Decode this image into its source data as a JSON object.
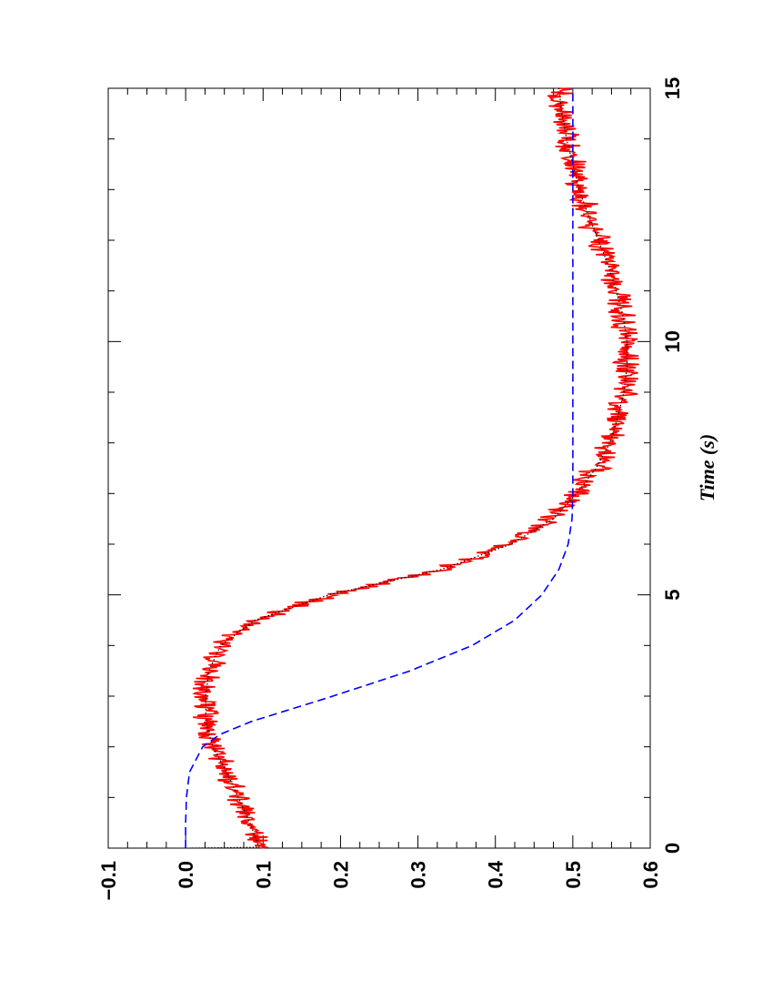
{
  "chart_data": {
    "type": "line",
    "orientation": "rotated 90 degrees clockwise (time axis on the right edge, value axis along the bottom)",
    "xlabel": "Time (s)",
    "ylabel": "",
    "xlim": [
      0,
      15
    ],
    "ylim": [
      -0.1,
      0.6
    ],
    "x_ticks": [
      "0",
      "5",
      "10",
      "15"
    ],
    "y_ticks": [
      "−0.1",
      "0.0",
      "0.1",
      "0.2",
      "0.3",
      "0.4",
      "0.5",
      "0.6"
    ],
    "grid": false,
    "legend": "none",
    "series": [
      {
        "style": "noisy-solid",
        "color": "#ff0000",
        "x": [
          0,
          0.5,
          1,
          1.5,
          2,
          2.5,
          3,
          3.5,
          4,
          4.5,
          5,
          5.5,
          6,
          6.5,
          7,
          7.5,
          8,
          8.5,
          9,
          9.5,
          10,
          10.5,
          11,
          11.5,
          12,
          12.5,
          13,
          13.5,
          14,
          14.5,
          15
        ],
        "values": [
          0.095,
          0.083,
          0.068,
          0.053,
          0.035,
          0.026,
          0.026,
          0.03,
          0.045,
          0.09,
          0.185,
          0.33,
          0.42,
          0.475,
          0.505,
          0.53,
          0.548,
          0.558,
          0.566,
          0.57,
          0.57,
          0.565,
          0.556,
          0.546,
          0.533,
          0.52,
          0.508,
          0.5,
          0.492,
          0.486,
          0.482
        ]
      },
      {
        "style": "dotted",
        "color": "#000000",
        "x": [
          0,
          0.5,
          1,
          1.5,
          2,
          2.5,
          3,
          3.5,
          4,
          4.5,
          5,
          5.5,
          6,
          6.5,
          7,
          7.5,
          8,
          8.5,
          9,
          9.5,
          10,
          10.5,
          11,
          11.5,
          12,
          12.5,
          13,
          13.5,
          14,
          14.5,
          15
        ],
        "values": [
          0.095,
          0.083,
          0.068,
          0.053,
          0.035,
          0.026,
          0.026,
          0.03,
          0.045,
          0.09,
          0.185,
          0.33,
          0.42,
          0.475,
          0.505,
          0.53,
          0.548,
          0.558,
          0.566,
          0.57,
          0.57,
          0.565,
          0.556,
          0.546,
          0.533,
          0.52,
          0.508,
          0.5,
          0.492,
          0.486,
          0.482
        ]
      },
      {
        "style": "dashed",
        "color": "#0000ff",
        "x": [
          0,
          0.5,
          1,
          1.5,
          2,
          2.25,
          2.5,
          3,
          3.5,
          4,
          4.5,
          5,
          5.5,
          6,
          6.5,
          7,
          8,
          10,
          12,
          15
        ],
        "values": [
          0.0,
          0.0,
          0.001,
          0.005,
          0.022,
          0.045,
          0.085,
          0.19,
          0.29,
          0.37,
          0.425,
          0.46,
          0.482,
          0.494,
          0.499,
          0.5,
          0.5,
          0.5,
          0.5,
          0.5
        ]
      }
    ],
    "annotations": [
      {
        "type": "vertical-dotted-segment",
        "x": 0,
        "y_from": 0.0,
        "y_to": 0.095
      }
    ]
  }
}
